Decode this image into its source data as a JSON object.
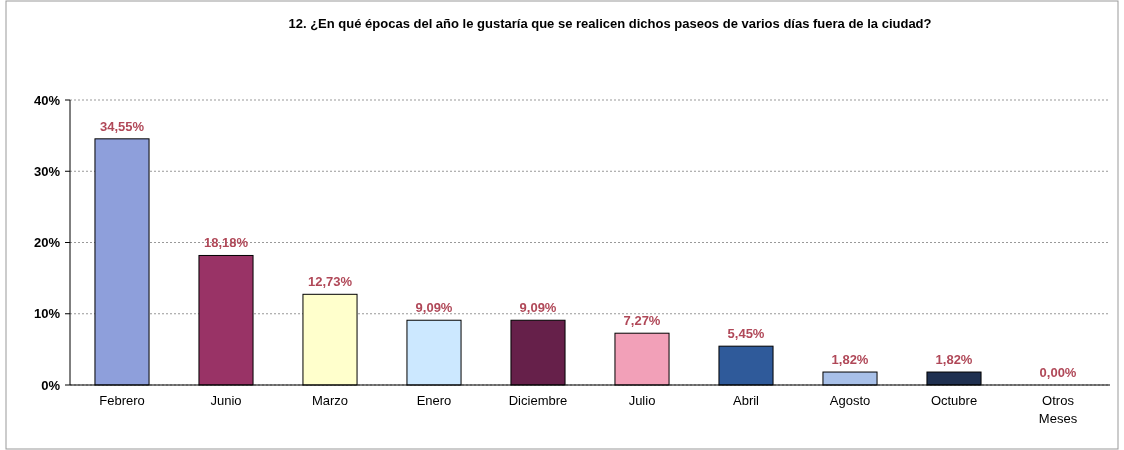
{
  "chart_data": {
    "type": "bar",
    "title": "12. ¿En qué épocas del año le gustaría que se realicen dichos paseos de varios días fuera de la ciudad?",
    "categories": [
      "Febrero",
      "Junio",
      "Marzo",
      "Enero",
      "Diciembre",
      "Julio",
      "Abril",
      "Agosto",
      "Octubre",
      "Otros Meses"
    ],
    "values": [
      34.55,
      18.18,
      12.73,
      9.09,
      9.09,
      7.27,
      5.45,
      1.82,
      1.82,
      0.0
    ],
    "colors": [
      "#8e9fdb",
      "#993366",
      "#ffffcc",
      "#cce8ff",
      "#66204a",
      "#f2a0b8",
      "#2f5a9a",
      "#a8c0e8",
      "#1f3050",
      "#cccccc"
    ],
    "value_labels": [
      "34,55%",
      "18,18%",
      "12,73%",
      "9,09%",
      "9,09%",
      "7,27%",
      "5,45%",
      "1,82%",
      "1,82%",
      "0,00%"
    ],
    "ylim": [
      0,
      40
    ],
    "yticks": [
      {
        "value": 0,
        "label": "0%"
      },
      {
        "value": 10,
        "label": "10%"
      },
      {
        "value": 20,
        "label": "20%"
      },
      {
        "value": 30,
        "label": "30%"
      },
      {
        "value": 40,
        "label": "40%"
      }
    ],
    "grid": "y"
  }
}
